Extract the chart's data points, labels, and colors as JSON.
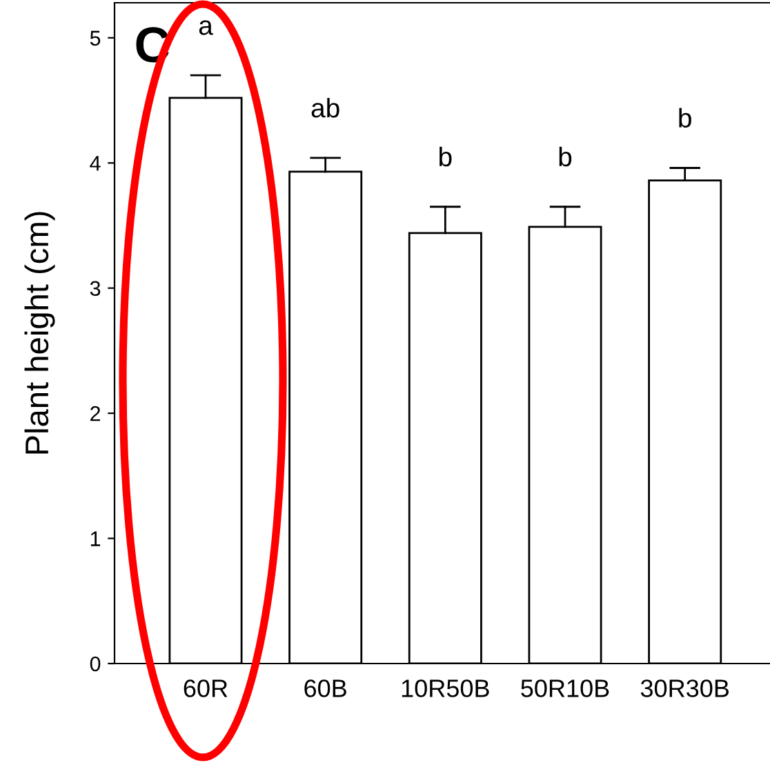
{
  "chart_data": {
    "type": "bar",
    "ylabel": "Plant height (cm)",
    "categories": [
      "60R",
      "60B",
      "10R50B",
      "50R10B",
      "30R30B"
    ],
    "values": [
      4.52,
      3.93,
      3.44,
      3.49,
      3.86
    ],
    "errors": [
      [
        4.52,
        4.7
      ],
      [
        3.93,
        4.04
      ],
      [
        3.44,
        3.65
      ],
      [
        3.49,
        3.65
      ],
      [
        3.86,
        3.96
      ]
    ],
    "color": "#ffffff",
    "ylim": [
      0,
      5.28
    ],
    "yticks": [
      0,
      1,
      2,
      3,
      4,
      5
    ],
    "grid": false,
    "annotations": [
      "C",
      "a",
      "ab",
      "b",
      "b",
      "b"
    ]
  }
}
